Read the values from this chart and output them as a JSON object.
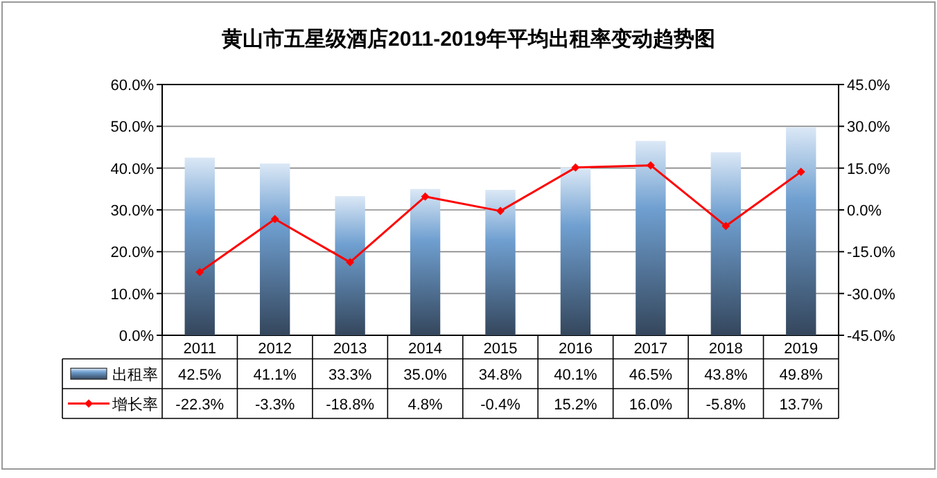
{
  "chart_data": {
    "type": "bar",
    "title": "黄山市五星级酒店2011-2019年平均出租率变动趋势图",
    "categories": [
      "2011",
      "2012",
      "2013",
      "2014",
      "2015",
      "2016",
      "2017",
      "2018",
      "2019"
    ],
    "series": [
      {
        "name": "出租率",
        "color": "#6f9fd0",
        "values": [
          42.5,
          41.1,
          33.3,
          35.0,
          34.8,
          40.1,
          46.5,
          43.8,
          49.8
        ],
        "value_labels": [
          "42.5%",
          "41.1%",
          "33.3%",
          "35.0%",
          "34.8%",
          "40.1%",
          "46.5%",
          "43.8%",
          "49.8%"
        ]
      },
      {
        "name": "增长率",
        "type": "line",
        "axis": "y2",
        "color": "#ff0000",
        "values": [
          -22.3,
          -3.3,
          -18.8,
          4.8,
          -0.4,
          15.2,
          16.0,
          -5.8,
          13.7
        ],
        "value_labels": [
          "-22.3%",
          "-3.3%",
          "-18.8%",
          "4.8%",
          "-0.4%",
          "15.2%",
          "16.0%",
          "-5.8%",
          "13.7%"
        ]
      }
    ],
    "ylim": [
      0,
      60
    ],
    "yticks": [
      {
        "value": 0,
        "label": "0.0%"
      },
      {
        "value": 10,
        "label": "10.0%"
      },
      {
        "value": 20,
        "label": "20.0%"
      },
      {
        "value": 30,
        "label": "30.0%"
      },
      {
        "value": 40,
        "label": "40.0%"
      },
      {
        "value": 50,
        "label": "50.0%"
      },
      {
        "value": 60,
        "label": "60.0%"
      }
    ],
    "y2lim": [
      -45,
      45
    ],
    "y2ticks": [
      {
        "value": -45,
        "label": "-45.0%"
      },
      {
        "value": -30,
        "label": "-30.0%"
      },
      {
        "value": -15,
        "label": "-15.0%"
      },
      {
        "value": 0,
        "label": "0.0%"
      },
      {
        "value": 15,
        "label": "15.0%"
      },
      {
        "value": 30,
        "label": "30.0%"
      },
      {
        "value": 45,
        "label": "45.0%"
      }
    ],
    "grid": "y",
    "legend": "bottom",
    "marker": "diamond",
    "line_style": "solid"
  }
}
